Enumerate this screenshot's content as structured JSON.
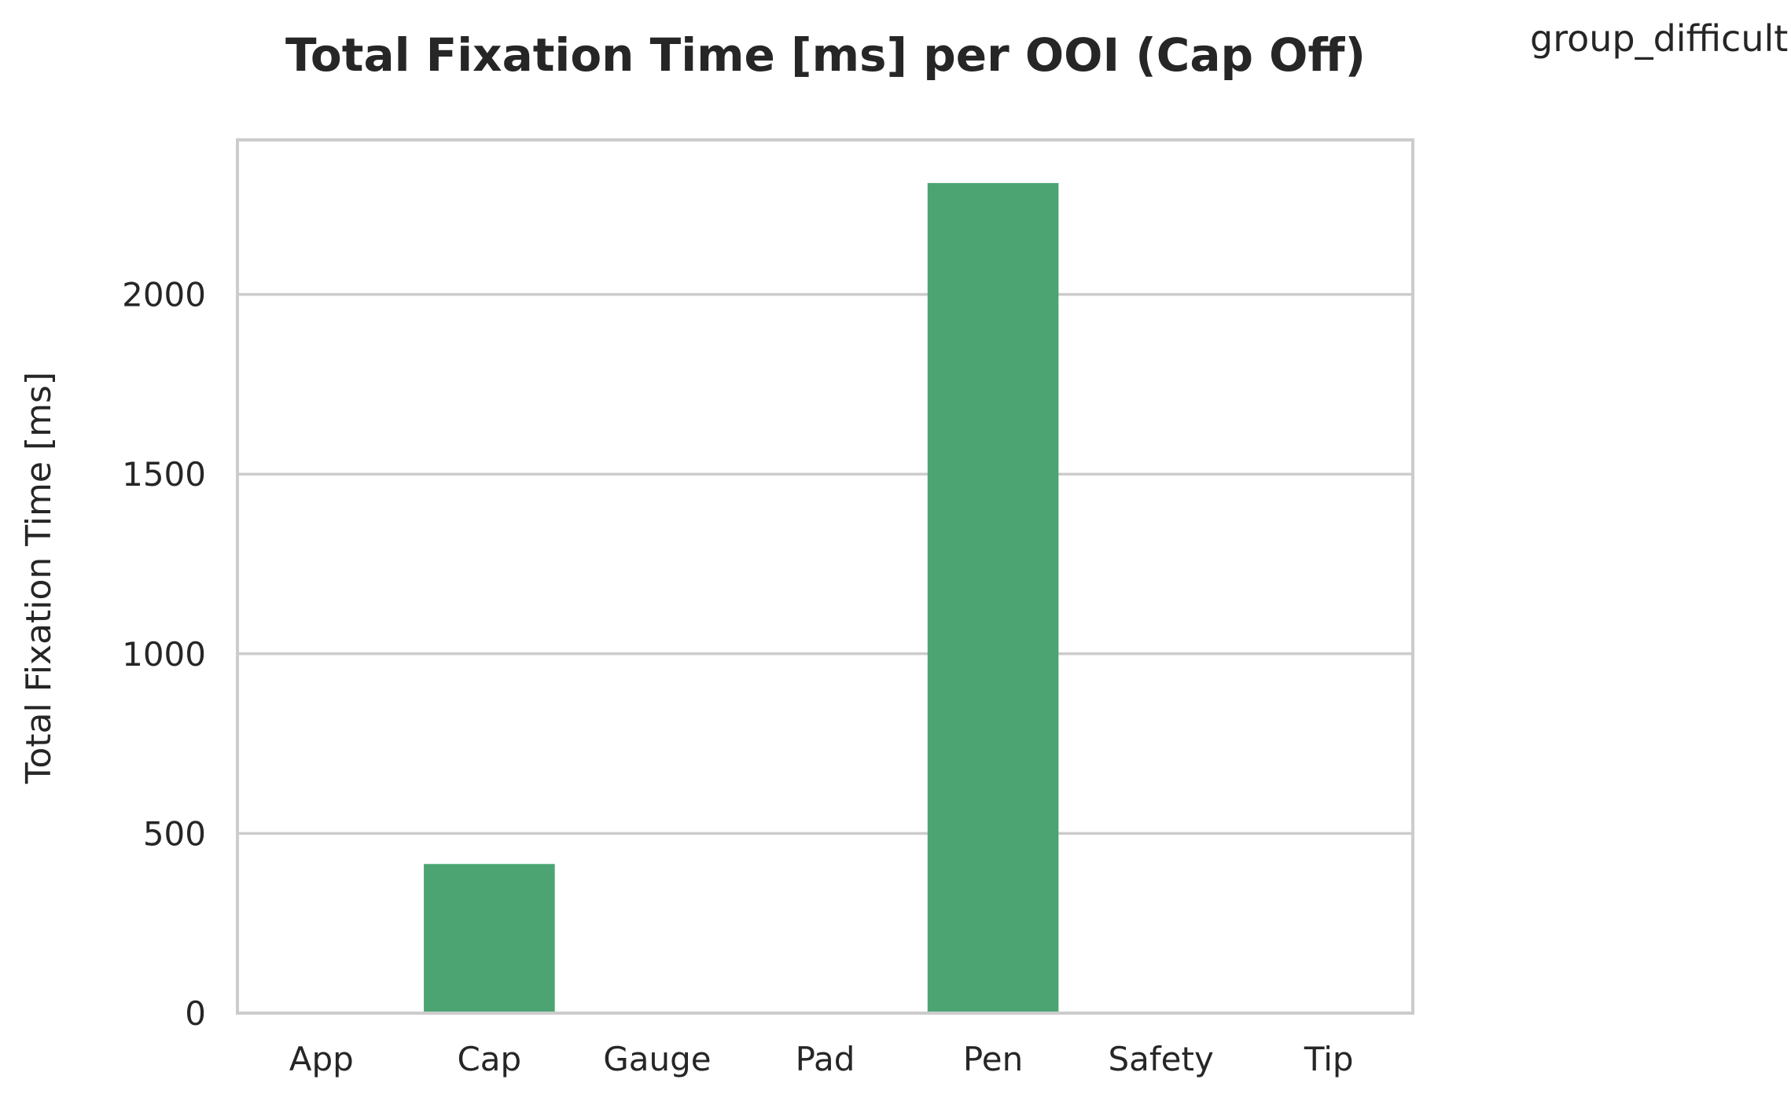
{
  "chart_data": {
    "type": "bar",
    "title": "Total Fixation Time [ms] per OOI (Cap Off)",
    "xlabel": "",
    "ylabel": "Total Fixation Time [ms]",
    "categories": [
      "App",
      "Cap",
      "Gauge",
      "Pad",
      "Pen",
      "Safety",
      "Tip"
    ],
    "series": [
      {
        "name": "group_difficult",
        "values": [
          0,
          415,
          0,
          0,
          2310,
          0,
          0
        ],
        "color": "#4ca473"
      }
    ],
    "ylim": [
      0,
      2430
    ],
    "yticks": [
      0,
      500,
      1000,
      1500,
      2000
    ],
    "grid": true,
    "legend_position": "top-right",
    "colors": {
      "bar": "#4ca473",
      "grid": "#cccccc",
      "frame": "#cccccc",
      "text": "#262626"
    }
  }
}
